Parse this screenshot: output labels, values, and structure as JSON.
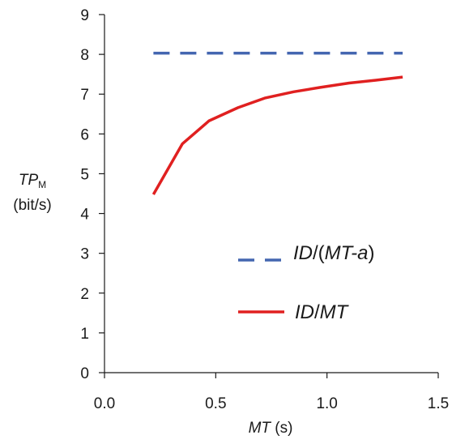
{
  "chart_data": {
    "type": "line",
    "title": "",
    "xlabel": {
      "main": "MT",
      "unit": " (s)"
    },
    "ylabel": {
      "main": "TP",
      "sub": "M",
      "unit": "(bit/s)"
    },
    "xlim": [
      0,
      1.5
    ],
    "ylim": [
      0,
      9
    ],
    "x_ticks": [
      "0.0",
      "0.5",
      "1.0",
      "1.5"
    ],
    "y_ticks": [
      "0",
      "1",
      "2",
      "3",
      "4",
      "5",
      "6",
      "7",
      "8",
      "9"
    ],
    "grid": false,
    "legend_position": "lower-right",
    "series": [
      {
        "name": "ID/(MT-a)",
        "name_parts": {
          "a": "ID",
          "b": "/(",
          "c": "MT-a",
          "d": ")"
        },
        "style": "dashed",
        "color": "#4466b0",
        "x": [
          0.22,
          1.34
        ],
        "y": [
          8.03,
          8.03
        ]
      },
      {
        "name": "ID/MT",
        "name_parts": {
          "a": "ID",
          "b": "/",
          "c": "MT"
        },
        "style": "solid",
        "color": "#e02020",
        "x": [
          0.22,
          0.35,
          0.47,
          0.6,
          0.72,
          0.85,
          0.97,
          1.1,
          1.22,
          1.34
        ],
        "y": [
          4.48,
          5.75,
          6.33,
          6.66,
          6.9,
          7.06,
          7.17,
          7.28,
          7.35,
          7.43
        ]
      }
    ]
  }
}
